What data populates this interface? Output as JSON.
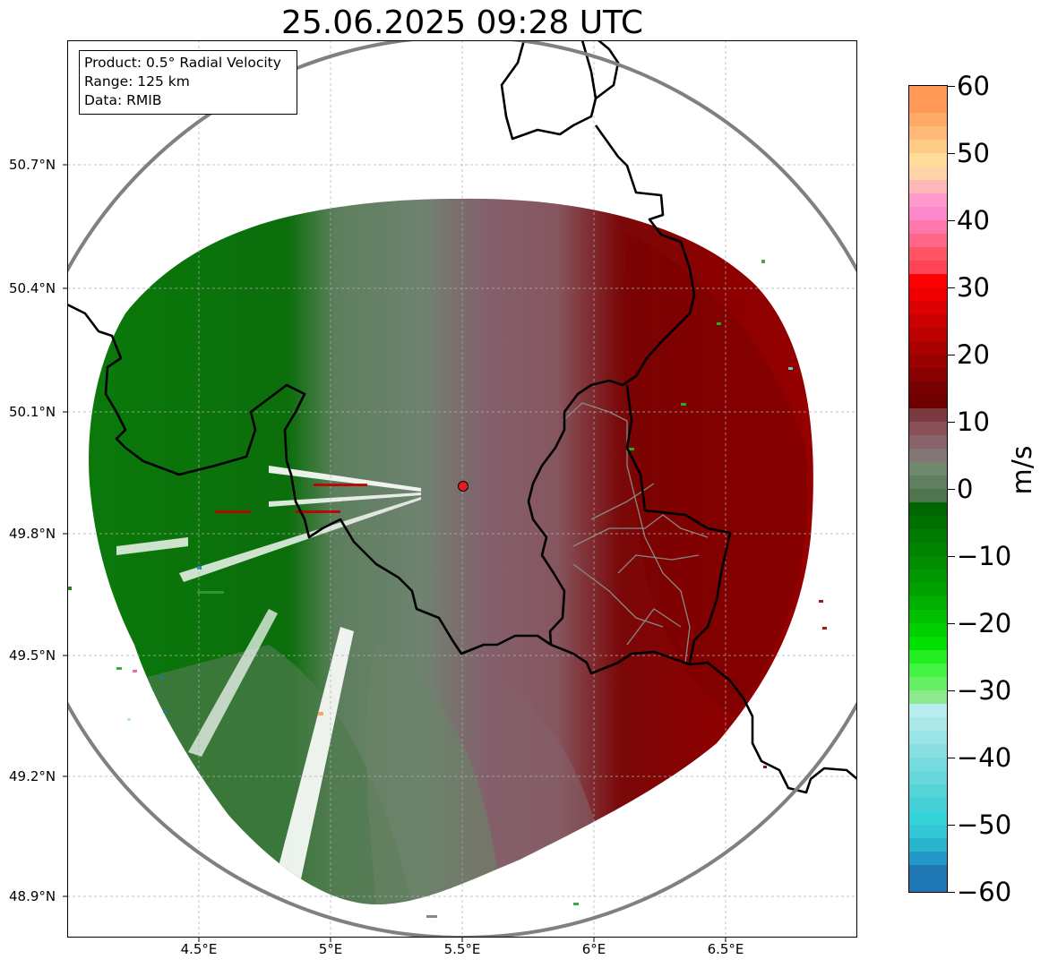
{
  "title": "25.06.2025 09:28 UTC",
  "info": {
    "product": "Product: 0.5° Radial Velocity",
    "range": "Range: 125 km",
    "data": "Data: RMIB"
  },
  "map": {
    "lat_labels": [
      "50.7°N",
      "50.4°N",
      "50.1°N",
      "49.8°N",
      "49.5°N",
      "49.2°N",
      "48.9°N"
    ],
    "lon_labels": [
      "4.5°E",
      "5°E",
      "5.5°E",
      "6°E",
      "6.5°E"
    ],
    "radar_site": "red-dot",
    "range_ring_color": "#808080",
    "border_color": "#000000"
  },
  "colorbar": {
    "unit": "m/s",
    "min": -60,
    "max": 60,
    "ticks": [
      "60",
      "50",
      "40",
      "30",
      "20",
      "10",
      "0",
      "−10",
      "−20",
      "−30",
      "−40",
      "−50",
      "−60"
    ],
    "colors": {
      "approaching_strong": "#1f77b4",
      "approaching_cyan": "#40e0e0",
      "approaching_green": "#008000",
      "near_zero": "#6b8a6b",
      "receding_mauve": "#8a5a66",
      "receding_red": "#7a0000",
      "receding_bright": "#ff0000",
      "receding_pink": "#ff88cc",
      "receding_orange": "#ff9955"
    }
  }
}
